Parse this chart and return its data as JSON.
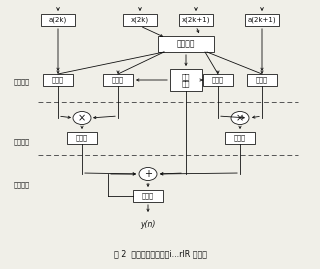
{
  "bg_color": "#f0efe8",
  "box_color": "#ffffff",
  "box_edge": "#1a1a1a",
  "text_color": "#111111",
  "arrow_color": "#111111",
  "dashed_color": "#555555",
  "title": "图 2  并行加流水线结构i...rIR 滤波器",
  "label_crossnet": "交联网络",
  "label_control": "控制\n逻辑",
  "label_reg": "寄存器",
  "label_mul": "×",
  "label_add": "+",
  "label_y": "y(n)",
  "label_stage1": "一级流水",
  "label_stage2": "二级流水",
  "label_stage3": "三级流水",
  "labels_top": [
    "a(2k)",
    "x(2k)",
    "x(2k+1)",
    "a(2k+1)"
  ]
}
